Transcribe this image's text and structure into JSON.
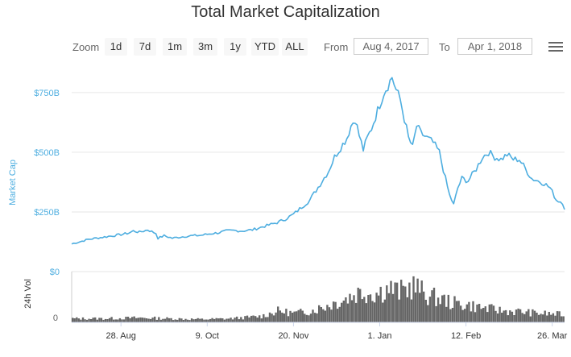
{
  "title": "Total Market Capitalization",
  "toolbar": {
    "zoom_label": "Zoom",
    "zoom_buttons": [
      "1d",
      "7d",
      "1m",
      "3m",
      "1y",
      "YTD",
      "ALL"
    ],
    "from_label": "From",
    "from_value": "Aug 4, 2017",
    "to_label": "To",
    "to_value": "Apr 1, 2018",
    "menu_icon": "hamburger-menu-icon"
  },
  "colors": {
    "market_cap_line": "#4eaee0",
    "volume_fill": "#666666",
    "axis_label": "#4eaee0",
    "grid": "#e6e6e6"
  },
  "chart_data": [
    {
      "type": "line",
      "ylabel": "Market Cap",
      "y_ticks": [
        "$0",
        "$250B",
        "$500B",
        "$750B"
      ],
      "ylim": [
        0,
        800
      ],
      "y_unit": "billion USD",
      "grid": true,
      "x_range": [
        "2017-08-04",
        "2018-04-01"
      ],
      "x_ticks": [
        "28. Aug",
        "9. Oct",
        "20. Nov",
        "1. Jan",
        "12. Feb",
        "26. Mar"
      ],
      "series": [
        {
          "x": [
            "2017-08-04",
            "2017-08-08",
            "2017-08-12",
            "2017-08-16",
            "2017-08-20",
            "2017-08-24",
            "2017-08-28",
            "2017-09-01",
            "2017-09-03",
            "2017-09-06",
            "2017-09-10",
            "2017-09-14",
            "2017-09-15",
            "2017-09-18",
            "2017-09-22",
            "2017-09-26",
            "2017-10-01",
            "2017-10-06",
            "2017-10-10",
            "2017-10-14",
            "2017-10-18",
            "2017-10-22",
            "2017-10-26",
            "2017-10-31",
            "2017-11-04",
            "2017-11-08",
            "2017-11-12",
            "2017-11-16",
            "2017-11-20",
            "2017-11-24",
            "2017-11-28",
            "2017-12-01",
            "2017-12-04",
            "2017-12-07",
            "2017-12-10",
            "2017-12-13",
            "2017-12-16",
            "2017-12-18",
            "2017-12-20",
            "2017-12-22",
            "2017-12-24",
            "2017-12-26",
            "2017-12-28",
            "2017-12-30",
            "2018-01-01",
            "2018-01-03",
            "2018-01-05",
            "2018-01-07",
            "2018-01-09",
            "2018-01-11",
            "2018-01-13",
            "2018-01-15",
            "2018-01-17",
            "2018-01-19",
            "2018-01-21",
            "2018-01-24",
            "2018-01-27",
            "2018-01-30",
            "2018-02-02",
            "2018-02-04",
            "2018-02-06",
            "2018-02-08",
            "2018-02-10",
            "2018-02-13",
            "2018-02-17",
            "2018-02-20",
            "2018-02-23",
            "2018-02-26",
            "2018-03-01",
            "2018-03-04",
            "2018-03-07",
            "2018-03-10",
            "2018-03-13",
            "2018-03-16",
            "2018-03-19",
            "2018-03-22",
            "2018-03-25",
            "2018-03-28",
            "2018-03-31",
            "2018-04-01"
          ],
          "values": [
            116,
            125,
            135,
            140,
            145,
            150,
            155,
            162,
            170,
            165,
            175,
            160,
            140,
            150,
            140,
            145,
            150,
            152,
            158,
            162,
            170,
            172,
            170,
            175,
            185,
            195,
            205,
            220,
            240,
            270,
            300,
            340,
            380,
            420,
            480,
            520,
            560,
            610,
            640,
            570,
            510,
            560,
            600,
            650,
            700,
            750,
            780,
            815,
            760,
            720,
            640,
            560,
            520,
            610,
            580,
            560,
            540,
            500,
            390,
            320,
            280,
            350,
            390,
            380,
            430,
            480,
            500,
            480,
            470,
            490,
            470,
            470,
            430,
            390,
            380,
            370,
            350,
            300,
            290,
            260
          ]
        }
      ]
    },
    {
      "type": "area",
      "ylabel": "24h Vol",
      "y_ticks": [
        "0"
      ],
      "ylim": [
        0,
        60
      ],
      "x_range": [
        "2017-08-04",
        "2018-04-01"
      ],
      "series": [
        {
          "x": [
            "2017-08-04",
            "2017-08-20",
            "2017-09-05",
            "2017-09-20",
            "2017-10-06",
            "2017-10-20",
            "2017-11-04",
            "2017-11-12",
            "2017-11-20",
            "2017-11-28",
            "2017-12-06",
            "2017-12-14",
            "2017-12-22",
            "2017-12-30",
            "2018-01-05",
            "2018-01-10",
            "2018-01-17",
            "2018-01-24",
            "2018-01-31",
            "2018-02-06",
            "2018-02-14",
            "2018-02-22",
            "2018-03-02",
            "2018-03-10",
            "2018-03-18",
            "2018-03-26",
            "2018-04-01"
          ],
          "values": [
            5,
            5,
            6,
            5,
            4,
            5,
            8,
            15,
            12,
            15,
            22,
            30,
            40,
            38,
            45,
            40,
            48,
            35,
            30,
            25,
            22,
            18,
            15,
            14,
            12,
            11,
            10
          ]
        }
      ]
    }
  ]
}
